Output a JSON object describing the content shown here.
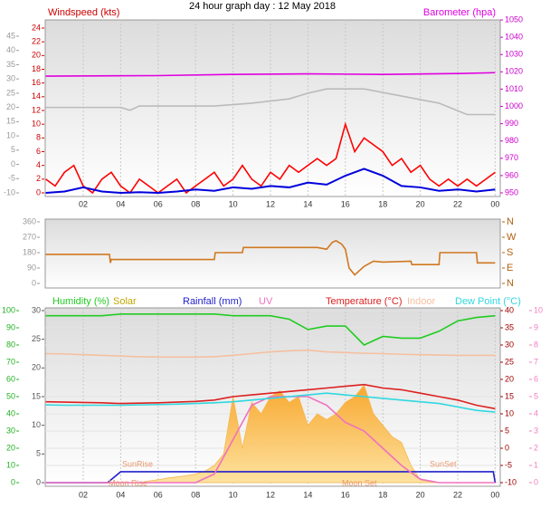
{
  "title": "24 hour graph day : 12 May 2018",
  "chart_data": [
    {
      "type": "line",
      "xlim": [
        0,
        24
      ],
      "xticks": [
        {
          "value": 2,
          "label": "02"
        },
        {
          "value": 4,
          "label": "04"
        },
        {
          "value": 6,
          "label": "06"
        },
        {
          "value": 8,
          "label": "08"
        },
        10,
        12,
        14,
        16,
        18,
        20,
        22,
        {
          "value": 24,
          "label": "00"
        }
      ],
      "ylim": [
        0,
        24
      ],
      "yticks": [
        0,
        2,
        4,
        6,
        8,
        10,
        12,
        14,
        16,
        18,
        20,
        22,
        24
      ],
      "y2lim": [
        950,
        1050
      ],
      "y2ticks": [
        950,
        960,
        970,
        980,
        990,
        1000,
        1010,
        1020,
        1030,
        1040,
        1050
      ],
      "y3lim": [
        -10,
        45
      ],
      "y3ticks": [
        -10,
        -5,
        0,
        5,
        10,
        15,
        20,
        25,
        30,
        35,
        40,
        45
      ],
      "axis_colors": {
        "y": "#cc0000",
        "y2": "#cc00cc",
        "y3": "#999999"
      },
      "series": [
        {
          "name": "Windspeed (kts)",
          "color": "#ff0000",
          "x": [
            0,
            0.5,
            1,
            1.5,
            2,
            2.5,
            3,
            3.5,
            4,
            4.5,
            5,
            5.5,
            6,
            6.5,
            7,
            7.5,
            8,
            8.5,
            9,
            9.5,
            10,
            10.5,
            11,
            11.5,
            12,
            12.5,
            13,
            13.5,
            14,
            14.5,
            15,
            15.5,
            16,
            16.5,
            17,
            17.5,
            18,
            18.5,
            19,
            19.5,
            20,
            20.5,
            21,
            21.5,
            22,
            22.5,
            23,
            23.5,
            24
          ],
          "values": [
            2,
            1,
            3,
            4,
            1,
            0,
            2,
            3,
            1,
            0,
            2,
            1,
            0,
            1,
            2,
            0,
            1,
            2,
            3,
            1,
            2,
            4,
            2,
            1,
            3,
            2,
            4,
            3,
            4,
            5,
            4,
            5,
            10,
            6,
            8,
            7,
            6,
            4,
            5,
            3,
            4,
            2,
            1,
            2,
            1,
            2,
            1,
            2,
            3
          ]
        },
        {
          "name": "Barometer (hpa)",
          "color": "#e000e0",
          "axis": "y2",
          "x": [
            0,
            6,
            10,
            14,
            18,
            22,
            24
          ],
          "values": [
            1017.5,
            1017.8,
            1018.5,
            1018.8,
            1018.5,
            1019,
            1019.5
          ]
        },
        {
          "color": "#bbbbbb",
          "axis": "y3",
          "x": [
            0,
            4,
            4.5,
            5,
            9,
            11,
            13,
            14,
            15,
            17,
            19,
            21,
            22.5,
            24
          ],
          "values": [
            20,
            20,
            19,
            20.5,
            20.5,
            21.5,
            23,
            25,
            26.5,
            26.5,
            24,
            21.5,
            17.5,
            17.5
          ]
        },
        {
          "color": "#0000dd",
          "x": [
            0,
            1,
            2,
            3,
            4,
            5,
            6,
            7,
            8,
            9,
            10,
            11,
            12,
            13,
            14,
            15,
            16,
            17,
            18,
            19,
            20,
            21,
            22,
            23,
            24
          ],
          "values": [
            0,
            0.2,
            0.8,
            0.2,
            0,
            0.1,
            0,
            0.2,
            0.5,
            0.3,
            0.8,
            0.6,
            1,
            0.8,
            1.5,
            1.2,
            2.5,
            3.5,
            2.5,
            1,
            0.8,
            0.3,
            0.5,
            0.2,
            0.5
          ]
        }
      ]
    },
    {
      "type": "line",
      "xlim": [
        0,
        24
      ],
      "ylim": [
        0,
        360
      ],
      "yticks": [
        0,
        90,
        180,
        270,
        360
      ],
      "y2lim": [
        0,
        360
      ],
      "y2ticks": [
        {
          "value": 0,
          "label": "N"
        },
        {
          "value": 90,
          "label": "E"
        },
        {
          "value": 180,
          "label": "S"
        },
        {
          "value": 270,
          "label": "W"
        },
        {
          "value": 360,
          "label": "N"
        }
      ],
      "axis_colors": {
        "y": "#999999",
        "y2": "#b06010"
      },
      "series": [
        {
          "color": "#d07820",
          "x": [
            0,
            3.4,
            3.45,
            3.5,
            9,
            9.05,
            10.5,
            10.55,
            14.5,
            15,
            15.3,
            15.5,
            15.8,
            16,
            16.2,
            16.5,
            17,
            17.5,
            18,
            19.5,
            19.55,
            21,
            21.05,
            23,
            23.05,
            24
          ],
          "values": [
            170,
            170,
            120,
            140,
            140,
            180,
            180,
            210,
            210,
            200,
            240,
            250,
            230,
            200,
            90,
            50,
            100,
            130,
            125,
            130,
            110,
            110,
            180,
            180,
            120,
            120
          ]
        }
      ]
    },
    {
      "type": "line",
      "xlim": [
        0,
        24
      ],
      "xticks": [
        {
          "value": 2,
          "label": "02"
        },
        {
          "value": 4,
          "label": "04"
        },
        {
          "value": 6,
          "label": "06"
        },
        {
          "value": 8,
          "label": "08"
        },
        10,
        12,
        14,
        16,
        18,
        20,
        22,
        {
          "value": 24,
          "label": "00"
        }
      ],
      "ylim": [
        0,
        100
      ],
      "yticks": [
        0,
        10,
        20,
        30,
        40,
        50,
        60,
        70,
        80,
        90,
        100
      ],
      "y2lim": [
        0,
        30
      ],
      "y2ticks": [
        0,
        5,
        10,
        15,
        20,
        25,
        30
      ],
      "y3lim": [
        -10,
        40
      ],
      "y3ticks": [
        -10,
        -5,
        0,
        5,
        10,
        15,
        20,
        25,
        30,
        35,
        40
      ],
      "y4lim": [
        0,
        10
      ],
      "y4ticks": [
        0,
        1,
        2,
        3,
        4,
        5,
        6,
        7,
        8,
        9,
        10
      ],
      "axis_colors": {
        "y": "#20b020",
        "y2": "#555555",
        "y3": "#a00000",
        "y4": "#f080c0"
      },
      "annotations": [
        "SunRise",
        "SunSet",
        "Moon Rise",
        "Moon Set"
      ],
      "series": [
        {
          "name": "Solar",
          "color": "#f5b850",
          "type": "area",
          "axis": "y2",
          "x": [
            5,
            5.5,
            6,
            6.5,
            7,
            7.5,
            8,
            8.5,
            9,
            9.5,
            10,
            10.5,
            11,
            11.5,
            12,
            12.5,
            13,
            13.5,
            14,
            14.5,
            15,
            15.5,
            16,
            16.5,
            17,
            17.5,
            18,
            18.5,
            19,
            19.5,
            20,
            20.5,
            21
          ],
          "values": [
            0,
            0.3,
            0.5,
            0.8,
            1,
            1.2,
            1.5,
            2,
            3,
            5,
            15,
            6,
            14,
            12,
            15,
            16,
            14,
            15,
            10,
            12,
            11,
            12,
            14,
            15,
            17,
            12,
            10,
            8,
            7,
            3,
            0.5,
            0.2,
            0
          ]
        },
        {
          "name": "Humidity (%)",
          "color": "#22cc22",
          "x": [
            0,
            1,
            2,
            3,
            4,
            5,
            6,
            7,
            8,
            9,
            10,
            11,
            12,
            13,
            14,
            15,
            16,
            17,
            18,
            19,
            20,
            21,
            22,
            23,
            24
          ],
          "values": [
            97,
            97,
            97,
            97,
            98,
            98,
            98,
            98,
            98,
            98,
            97,
            97,
            97,
            95,
            89,
            91,
            91,
            80,
            85,
            84,
            84,
            88,
            94,
            96,
            97
          ]
        },
        {
          "name": "Rainfall (mm)",
          "color": "#2020cc",
          "axis": "y2",
          "x": [
            0,
            3.3,
            4,
            23.9,
            24
          ],
          "values": [
            0,
            0,
            1.9,
            1.9,
            0
          ]
        },
        {
          "name": "UV",
          "color": "#f070c0",
          "axis": "y4",
          "x": [
            0,
            1,
            2,
            3,
            4,
            5,
            6,
            7,
            8,
            9,
            10,
            11,
            12,
            13,
            14,
            15,
            16,
            17,
            18,
            19,
            20,
            21,
            22,
            23,
            24
          ],
          "values": [
            0,
            0,
            0,
            0,
            0,
            0,
            0,
            0,
            0,
            0.5,
            2.5,
            4.5,
            5,
            5,
            5,
            4.5,
            3.5,
            3,
            2,
            1,
            0.2,
            0,
            0,
            0,
            0
          ]
        },
        {
          "name": "Temperature (°C)",
          "color": "#dd2020",
          "axis": "y3",
          "x": [
            0,
            1,
            2,
            3,
            4,
            5,
            6,
            7,
            8,
            9,
            10,
            11,
            12,
            13,
            14,
            15,
            16,
            17,
            18,
            19,
            20,
            21,
            22,
            23,
            24
          ],
          "values": [
            13.5,
            13.4,
            13.3,
            13.2,
            13,
            13.1,
            13.2,
            13.4,
            13.6,
            14,
            15,
            15.5,
            16,
            16.5,
            17,
            17.5,
            18,
            18.5,
            17.5,
            17,
            16,
            15,
            14,
            12.5,
            11.5
          ]
        },
        {
          "name": "Indoor",
          "color": "#f5c0a0",
          "axis": "y3",
          "x": [
            0,
            1,
            2,
            3,
            4,
            5,
            6,
            7,
            8,
            9,
            10,
            11,
            12,
            13,
            14,
            15,
            16,
            17,
            18,
            19,
            20,
            21,
            22,
            23,
            24
          ],
          "values": [
            27.5,
            27.4,
            27.2,
            27,
            26.8,
            26.6,
            26.5,
            26.5,
            26.5,
            26.6,
            27,
            27.5,
            28,
            28.3,
            28.5,
            28,
            27.8,
            27.6,
            27.5,
            27.3,
            27.2,
            27.1,
            27,
            27,
            27
          ]
        },
        {
          "name": "Dew Point (°C)",
          "color": "#30d8e0",
          "axis": "y3",
          "x": [
            0,
            1,
            2,
            3,
            4,
            5,
            6,
            7,
            8,
            9,
            10,
            11,
            12,
            13,
            14,
            15,
            16,
            17,
            18,
            19,
            20,
            21,
            22,
            23,
            24
          ],
          "values": [
            12.6,
            12.5,
            12.5,
            12.5,
            12.5,
            12.6,
            12.7,
            12.8,
            13,
            13.2,
            13.5,
            14,
            14.5,
            15,
            15.5,
            16,
            15.5,
            15,
            14.5,
            14,
            13.5,
            13,
            12,
            11,
            10.5
          ]
        }
      ]
    }
  ]
}
